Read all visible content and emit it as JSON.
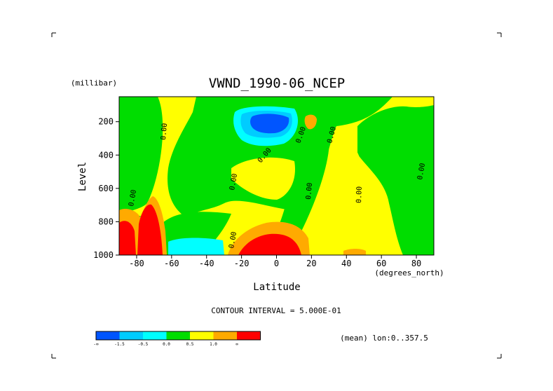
{
  "chart_data": {
    "type": "heatmap",
    "title": "VWND_1990-06_NCEP",
    "xlabel": "Latitude",
    "ylabel": "Level",
    "y_units": "(millibar)",
    "x_units": "(degrees_north)",
    "xlim": [
      -90,
      90
    ],
    "ylim": [
      1000,
      50
    ],
    "x_ticks": [
      -80,
      -60,
      -40,
      -20,
      0,
      20,
      40,
      60,
      80
    ],
    "x_tick_labels": [
      "-80",
      "-60",
      "-40",
      "-20",
      "0",
      "20",
      "40",
      "60",
      "80"
    ],
    "y_ticks": [
      200,
      400,
      600,
      800,
      1000
    ],
    "y_tick_labels": [
      "200",
      "400",
      "600",
      "800",
      "1000"
    ],
    "contour_interval_text": "CONTOUR INTERVAL = 5.000E-01",
    "mean_text": "(mean) lon:0..357.5",
    "contour_labels": [
      "0.00",
      "0.00",
      "0.00",
      "0.00",
      "0.00",
      "0.00",
      "0.00",
      "0.00",
      "0.00",
      "0.00"
    ],
    "colorbar": {
      "levels": [
        "-∞",
        "-1.5",
        "-0.5",
        "0.0",
        "0.5",
        "1.0",
        "∞"
      ],
      "colors": [
        "#0055ff",
        "#00ccff",
        "#00ffff",
        "#00dd00",
        "#ffff00",
        "#ffaa00",
        "#ff0000"
      ]
    },
    "regions": [
      {
        "value": -2.0,
        "color": "#0055ff",
        "description": "jet core 200 mb near -15"
      },
      {
        "value": -1.0,
        "color": "#00ffff",
        "description": "upper negative lobe around -20..10 at 150-300 mb"
      },
      {
        "value": -0.8,
        "color": "#00ffff",
        "description": "surface negative band -57..-33 near 950 mb"
      },
      {
        "value": 0.2,
        "color": "#00dd00",
        "description": "near-zero zones"
      },
      {
        "value": 0.7,
        "color": "#ffff00",
        "description": "weak positive broad regions"
      },
      {
        "value": 1.2,
        "color": "#ffaa00",
        "description": "positive lobes at surface"
      },
      {
        "value": 2.5,
        "color": "#ff0000",
        "description": "strong positive at -90..-70 and -20..15 near surface"
      }
    ]
  },
  "corner_marks": [
    "top-left",
    "top-right",
    "bottom-left",
    "bottom-right"
  ]
}
